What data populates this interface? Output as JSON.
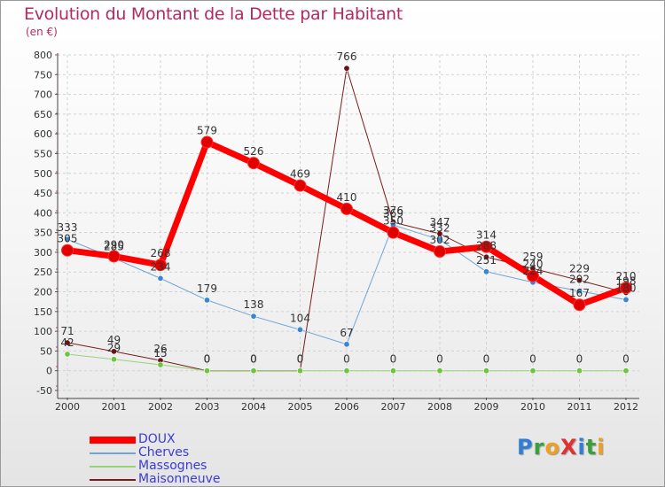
{
  "title": "Evolution du Montant de la Dette par Habitant",
  "unit": "(en €)",
  "logo": {
    "text": "ProXiti",
    "letters": [
      {
        "ch": "P",
        "color": "#2f7fd6"
      },
      {
        "ch": "r",
        "color": "#3aa03a"
      },
      {
        "ch": "o",
        "color": "#f0a020"
      },
      {
        "ch": "X",
        "color": "#e03030"
      },
      {
        "ch": "i",
        "color": "#2f7fd6"
      },
      {
        "ch": "t",
        "color": "#3aa03a"
      },
      {
        "ch": "i",
        "color": "#f0a020"
      }
    ]
  },
  "chart_data": {
    "type": "line",
    "title": "Evolution du Montant de la Dette par Habitant",
    "ylabel": "(en €)",
    "x": [
      "2000",
      "2001",
      "2002",
      "2003",
      "2004",
      "2005",
      "2006",
      "2007",
      "2008",
      "2009",
      "2010",
      "2011",
      "2012"
    ],
    "yticks": [
      "-50",
      "0",
      "50",
      "100",
      "150",
      "200",
      "250",
      "300",
      "350",
      "400",
      "450",
      "500",
      "550",
      "600",
      "650",
      "700",
      "750",
      "800"
    ],
    "ylim": [
      -50,
      800
    ],
    "series": [
      {
        "name": "Maisonneuve",
        "color": "#7a1c1c",
        "dot": "#6a1010",
        "width": 1,
        "values": [
          71,
          49,
          26,
          0,
          0,
          0,
          766,
          376,
          347,
          288,
          259,
          229,
          198
        ]
      },
      {
        "name": "Massognes",
        "color": "#96d47a",
        "dot": "#6cc440",
        "width": 1,
        "values": [
          42,
          29,
          15,
          0,
          0,
          0,
          0,
          0,
          0,
          0,
          0,
          0,
          0
        ]
      },
      {
        "name": "Cherves",
        "color": "#6fa6d6",
        "dot": "#3a86d0",
        "width": 1,
        "values": [
          333,
          285,
          234,
          179,
          138,
          104,
          67,
          369,
          332,
          251,
          224,
          202,
          180
        ]
      },
      {
        "name": "DOUX",
        "color": "#ff0000",
        "dot": "#e10000",
        "width": 7,
        "values": [
          305,
          290,
          268,
          579,
          526,
          469,
          410,
          350,
          302,
          314,
          240,
          167,
          210
        ]
      }
    ],
    "legend_order": [
      "DOUX",
      "Cherves",
      "Massognes",
      "Maisonneuve"
    ],
    "data_labels": [
      {
        "text": "71"
      },
      {
        "text": "49"
      },
      {
        "text": "26"
      },
      {
        "text": "0"
      },
      {
        "text": "0"
      },
      {
        "text": "0"
      },
      {
        "text": "766"
      },
      {
        "text": "376"
      },
      {
        "text": "347"
      },
      {
        "text": "288"
      },
      {
        "text": "259"
      },
      {
        "text": "229"
      },
      {
        "text": "198"
      },
      {
        "text": "42"
      },
      {
        "text": "29"
      },
      {
        "text": "15"
      },
      {
        "text": "0"
      },
      {
        "text": "0"
      },
      {
        "text": "0"
      },
      {
        "text": "0"
      },
      {
        "text": "0"
      },
      {
        "text": "0"
      },
      {
        "text": "0"
      },
      {
        "text": "0"
      },
      {
        "text": "0"
      },
      {
        "text": "0"
      },
      {
        "text": "333"
      },
      {
        "text": "285"
      },
      {
        "text": "234"
      },
      {
        "text": "179"
      },
      {
        "text": "138"
      },
      {
        "text": "104"
      },
      {
        "text": "67"
      },
      {
        "text": "369"
      },
      {
        "text": "332"
      },
      {
        "text": "251"
      },
      {
        "text": "224"
      },
      {
        "text": "202"
      },
      {
        "text": "180"
      },
      {
        "text": "305"
      },
      {
        "text": "290"
      },
      {
        "text": "268"
      },
      {
        "text": "579"
      },
      {
        "text": "526"
      },
      {
        "text": "469"
      },
      {
        "text": "410"
      },
      {
        "text": "350"
      },
      {
        "text": "302"
      },
      {
        "text": "314"
      },
      {
        "text": "240"
      },
      {
        "text": "167"
      },
      {
        "text": "210"
      }
    ]
  }
}
